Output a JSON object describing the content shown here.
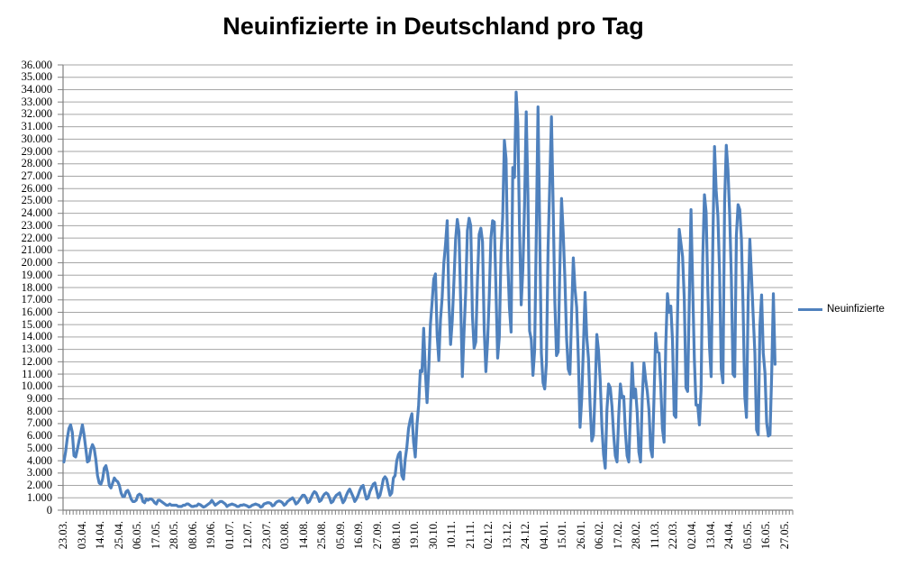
{
  "title": "Neuinfizierte in Deutschland pro Tag",
  "legend": {
    "items": [
      {
        "label": "Neuinfizierte",
        "color": "#4F81BD"
      }
    ]
  },
  "colors": {
    "series": "#4F81BD",
    "gridline": "#A6A6A6",
    "axis": "#808080",
    "text": "#000000",
    "background": "#FFFFFF"
  },
  "chart_data": {
    "type": "line",
    "title": "Neuinfizierte in Deutschland pro Tag",
    "xlabel": "",
    "ylabel": "",
    "ylim": [
      0,
      36000
    ],
    "y_tick_step": 1000,
    "grid": "horizontal",
    "legend_position": "right",
    "x_start": "23.03.2020",
    "x_end": "21.05.2021",
    "x_frequency": "daily (30.06.2020 missing)",
    "x_tick_interval_points": 11,
    "x_total_slots": 434,
    "y_tick_labels": [
      "36.000",
      "35.000",
      "34.000",
      "33.000",
      "32.000",
      "31.000",
      "30.000",
      "29.000",
      "28.000",
      "27.000",
      "26.000",
      "25.000",
      "24.000",
      "23.000",
      "22.000",
      "21.000",
      "20.000",
      "19.000",
      "18.000",
      "17.000",
      "16.000",
      "15.000",
      "14.000",
      "13.000",
      "12.000",
      "11.000",
      "10.000",
      "9.000",
      "8.000",
      "7.000",
      "6.000",
      "5.000",
      "4.000",
      "3.000",
      "2.000",
      "1.000",
      "0"
    ],
    "x_tick_labels": [
      "23.03.",
      "03.04.",
      "14.04.",
      "25.04.",
      "06.05.",
      "17.05.",
      "28.05.",
      "08.06.",
      "19.06.",
      "01.07.",
      "12.07.",
      "23.07.",
      "03.08.",
      "14.08.",
      "25.08.",
      "05.09.",
      "16.09.",
      "27.09.",
      "08.10.",
      "19.10.",
      "30.10.",
      "10.11.",
      "21.11.",
      "02.12.",
      "13.12.",
      "24.12.",
      "04.01.",
      "15.01.",
      "26.01.",
      "06.02.",
      "17.02.",
      "28.02.",
      "11.03.",
      "22.03.",
      "02.04.",
      "13.04.",
      "24.04.",
      "05.05.",
      "16.05.",
      "27.05."
    ],
    "series": [
      {
        "name": "Neuinfizierte",
        "color": "#4F81BD",
        "values": [
          3900,
          4700,
          5800,
          6600,
          6900,
          6300,
          4400,
          4300,
          4900,
          5600,
          6200,
          6900,
          6100,
          5000,
          3900,
          4000,
          4900,
          5300,
          5000,
          4100,
          2800,
          2200,
          2100,
          2500,
          3400,
          3600,
          3000,
          2000,
          1800,
          2200,
          2600,
          2400,
          2300,
          2000,
          1400,
          1100,
          1100,
          1500,
          1600,
          1300,
          900,
          700,
          700,
          800,
          1200,
          1300,
          1200,
          700,
          600,
          900,
          800,
          900,
          900,
          800,
          600,
          500,
          800,
          800,
          700,
          600,
          500,
          400,
          400,
          500,
          400,
          400,
          400,
          400,
          300,
          300,
          300,
          400,
          400,
          500,
          500,
          400,
          300,
          300,
          350,
          350,
          500,
          450,
          350,
          250,
          300,
          400,
          500,
          600,
          800,
          600,
          400,
          500,
          600,
          700,
          700,
          600,
          500,
          300,
          400,
          450,
          500,
          450,
          400,
          300,
          300,
          400,
          400,
          450,
          400,
          350,
          250,
          300,
          400,
          450,
          500,
          450,
          400,
          250,
          300,
          500,
          550,
          600,
          600,
          550,
          350,
          400,
          600,
          700,
          750,
          700,
          600,
          400,
          500,
          700,
          800,
          900,
          1000,
          800,
          500,
          600,
          800,
          1000,
          1200,
          1200,
          1000,
          600,
          700,
          1000,
          1300,
          1500,
          1400,
          1100,
          700,
          800,
          1100,
          1300,
          1400,
          1300,
          1000,
          600,
          700,
          1000,
          1200,
          1300,
          1400,
          1000,
          600,
          800,
          1200,
          1500,
          1700,
          1400,
          1100,
          700,
          900,
          1200,
          1600,
          1900,
          2000,
          1400,
          900,
          1000,
          1500,
          1800,
          2100,
          2200,
          1600,
          1000,
          1200,
          1800,
          2500,
          2700,
          2500,
          1800,
          1200,
          1400,
          2600,
          2800,
          4000,
          4500,
          4700,
          2800,
          2500,
          4100,
          5100,
          6600,
          7300,
          7800,
          5500,
          4300,
          6900,
          8500,
          11300,
          11200,
          14700,
          11200,
          8700,
          11400,
          15000,
          16800,
          18700,
          19100,
          14200,
          12100,
          15400,
          17200,
          20000,
          21500,
          23400,
          16900,
          13400,
          15300,
          18500,
          21900,
          23500,
          22500,
          16900,
          10800,
          14400,
          17600,
          22600,
          23600,
          23000,
          15700,
          13100,
          13600,
          18600,
          22300,
          22800,
          21700,
          14600,
          11200,
          13600,
          17300,
          22000,
          23400,
          23300,
          17800,
          12300,
          14000,
          20800,
          23700,
          29900,
          28400,
          20200,
          16400,
          14400,
          27700,
          26900,
          33800,
          31300,
          22800,
          16600,
          19500,
          24700,
          32200,
          25500,
          14500,
          13800,
          10900,
          12900,
          22500,
          32600,
          22900,
          12700,
          10300,
          9800,
          11900,
          21200,
          26400,
          31800,
          24700,
          16900,
          12500,
          12800,
          19600,
          25200,
          22400,
          18700,
          13900,
          11400,
          11000,
          15900,
          20400,
          17900,
          16400,
          12300,
          6700,
          9000,
          13200,
          17600,
          14000,
          12300,
          8500,
          5600,
          6100,
          9700,
          14200,
          12900,
          10500,
          6800,
          4500,
          3400,
          8100,
          10200,
          9900,
          8400,
          6100,
          4400,
          3900,
          7600,
          10200,
          9100,
          9200,
          6300,
          4400,
          3900,
          8000,
          11900,
          9100,
          9800,
          7900,
          4700,
          3900,
          9000,
          11900,
          10600,
          9600,
          8100,
          5000,
          4300,
          9100,
          14300,
          12800,
          12700,
          10100,
          6600,
          5500,
          13400,
          17500,
          16000,
          16500,
          13700,
          7700,
          7500,
          15800,
          22700,
          21600,
          20500,
          17100,
          9900,
          9600,
          17100,
          24300,
          18100,
          12200,
          8500,
          8500,
          6900,
          9700,
          20400,
          25500,
          24100,
          17900,
          13200,
          10800,
          21700,
          29400,
          25800,
          23800,
          19200,
          11400,
          10300,
          24900,
          29500,
          27500,
          23900,
          18800,
          11000,
          10800,
          22200,
          24700,
          24300,
          21900,
          16300,
          9200,
          7500,
          17000,
          21900,
          18900,
          15700,
          12700,
          6500,
          6100,
          14900,
          17400,
          12700,
          11100,
          7100,
          6000,
          6100,
          11000,
          17500,
          11800
        ]
      }
    ]
  }
}
